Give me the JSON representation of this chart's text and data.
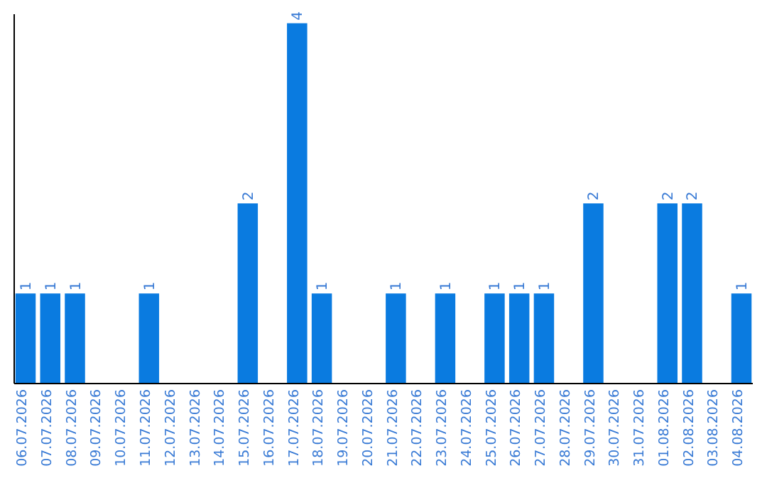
{
  "chart_data": {
    "type": "bar",
    "categories": [
      "06.07.2026",
      "07.07.2026",
      "08.07.2026",
      "09.07.2026",
      "10.07.2026",
      "11.07.2026",
      "12.07.2026",
      "13.07.2026",
      "14.07.2026",
      "15.07.2026",
      "16.07.2026",
      "17.07.2026",
      "18.07.2026",
      "19.07.2026",
      "20.07.2026",
      "21.07.2026",
      "22.07.2026",
      "23.07.2026",
      "24.07.2026",
      "25.07.2026",
      "26.07.2026",
      "27.07.2026",
      "28.07.2026",
      "29.07.2026",
      "30.07.2026",
      "31.07.2026",
      "01.08.2026",
      "02.08.2026",
      "03.08.2026",
      "04.08.2026"
    ],
    "values": [
      1,
      1,
      1,
      0,
      0,
      1,
      0,
      0,
      0,
      2,
      0,
      4,
      1,
      0,
      0,
      1,
      0,
      1,
      0,
      1,
      1,
      1,
      0,
      2,
      0,
      0,
      2,
      2,
      0,
      1
    ],
    "value_labels": [
      "1",
      "1",
      "1",
      null,
      null,
      "1",
      null,
      null,
      null,
      "2",
      null,
      "4",
      "1",
      null,
      null,
      "1",
      null,
      "1",
      null,
      "1",
      "1",
      "1",
      null,
      "2",
      null,
      null,
      "2",
      "2",
      null,
      "1"
    ],
    "color": "#0a7be0",
    "ylim": [
      0,
      4.1
    ],
    "tick_labels": "x"
  }
}
